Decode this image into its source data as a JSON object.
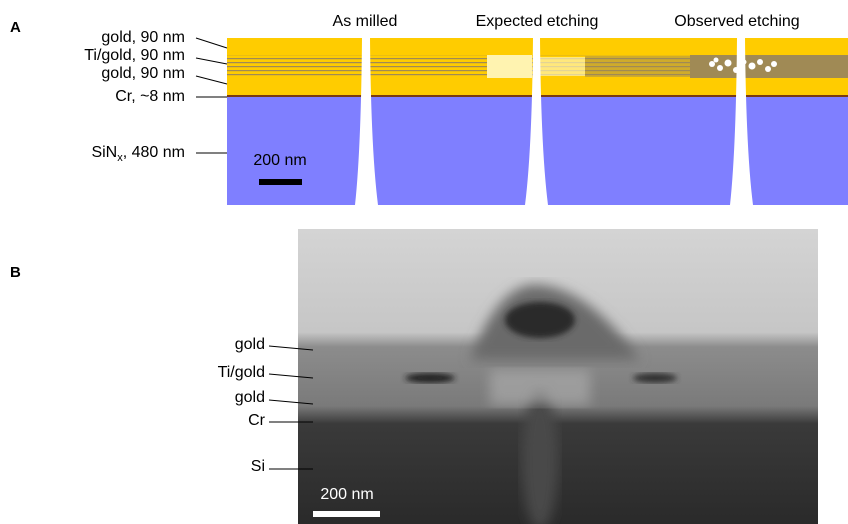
{
  "panel_a": {
    "label": "A",
    "columns": [
      "As milled",
      "Expected etching",
      "Observed etching"
    ],
    "layers": [
      "gold, 90 nm",
      "Ti/gold, 90 nm",
      "gold, 90 nm",
      "Cr, ~8 nm"
    ],
    "substrate": {
      "name": "SiN",
      "subscript": "x",
      "rest": ", 480 nm"
    },
    "scale_bar": "200 nm"
  },
  "panel_b": {
    "label": "B",
    "layers": [
      "gold",
      "Ti/gold",
      "gold",
      "Cr",
      "Si"
    ],
    "scale_bar": "200 nm"
  }
}
